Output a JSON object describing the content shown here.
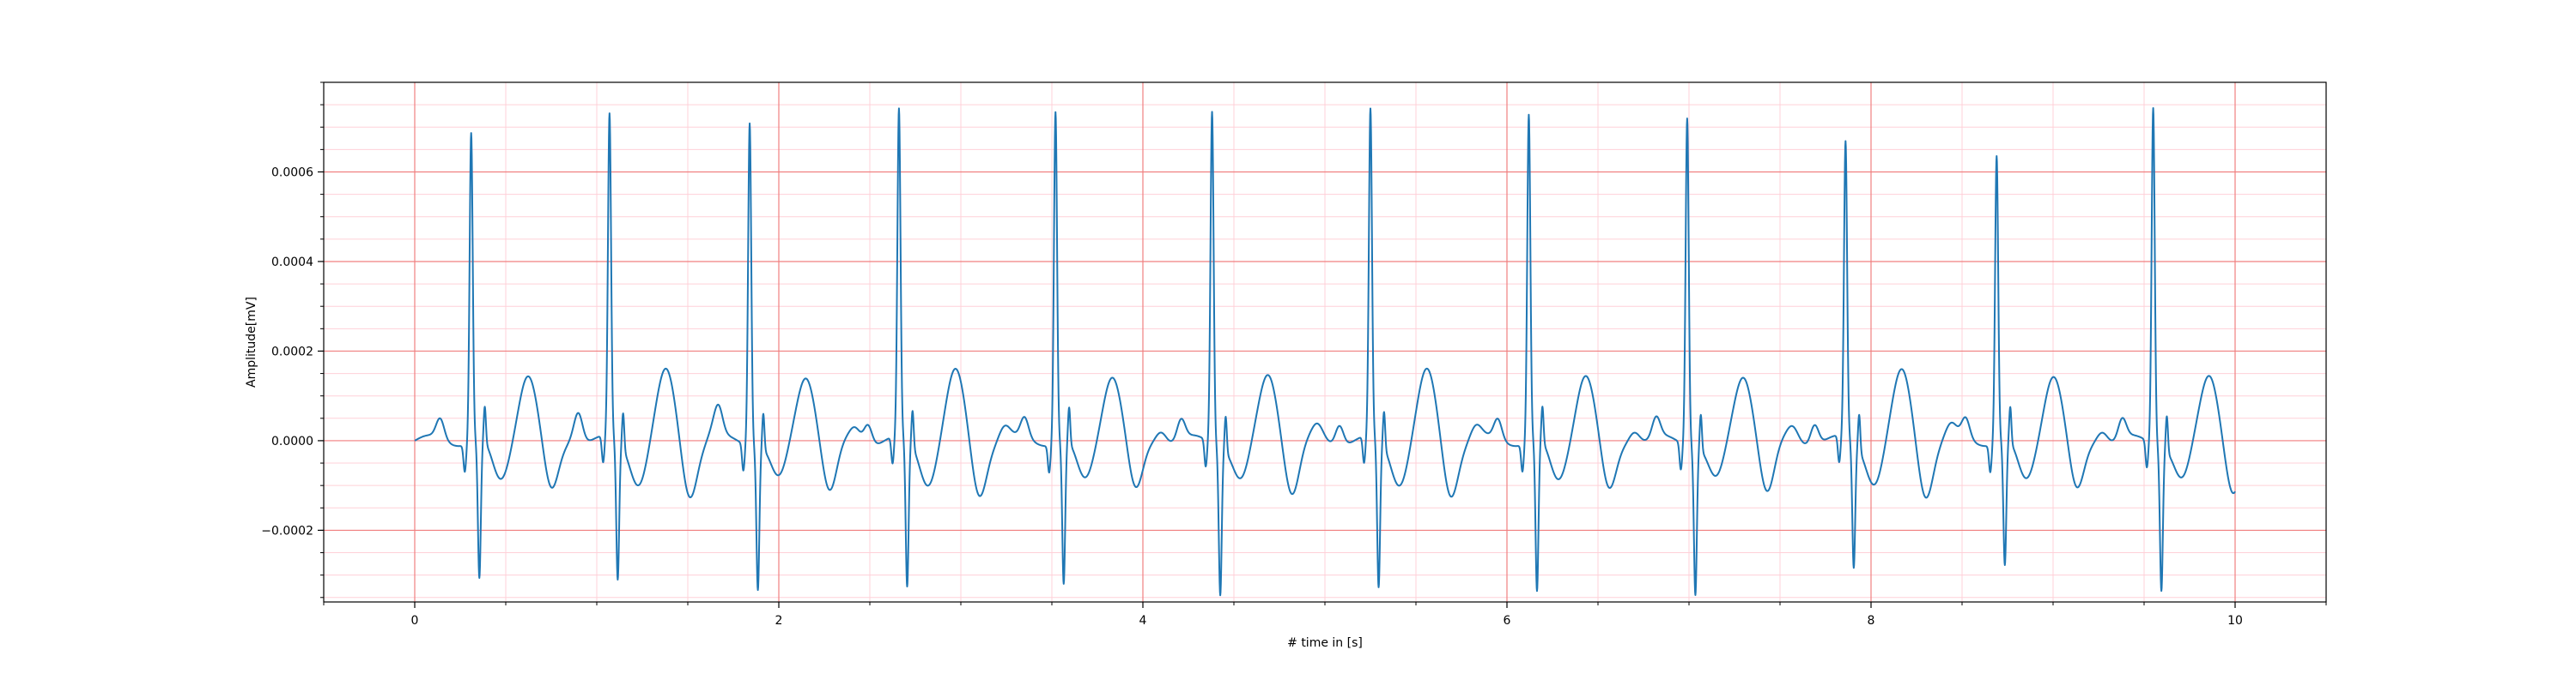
{
  "chart_data": {
    "type": "line",
    "title": "",
    "xlabel": "# time in [s]",
    "ylabel": "Amplitude[mV]",
    "xlim": [
      -0.5,
      10.5
    ],
    "ylim": [
      -0.00036,
      0.0008
    ],
    "x_ticks": [
      0,
      2,
      4,
      6,
      8,
      10
    ],
    "x_tick_labels": [
      "0",
      "2",
      "4",
      "6",
      "8",
      "10"
    ],
    "y_ticks": [
      -0.0002,
      0.0,
      0.0002,
      0.0004,
      0.0006
    ],
    "y_tick_labels": [
      "−0.0002",
      "0.0000",
      "0.0002",
      "0.0004",
      "0.0006"
    ],
    "x_minor_step": 0.5,
    "y_minor_step": 5e-05,
    "grid": {
      "major": true,
      "minor": true,
      "major_color": "#f08080",
      "minor_color": "#ffd0d8"
    },
    "series_color": "#1f77b4",
    "beats": [
      {
        "t": 0.31,
        "r": 0.00069,
        "s": -0.00028
      },
      {
        "t": 1.07,
        "r": 0.00072,
        "s": -0.00028
      },
      {
        "t": 1.84,
        "r": 0.00072,
        "s": -0.00029
      },
      {
        "t": 2.66,
        "r": 0.00073,
        "s": -0.0003
      },
      {
        "t": 3.52,
        "r": 0.00074,
        "s": -0.00029
      },
      {
        "t": 4.38,
        "r": 0.00074,
        "s": -0.0003
      },
      {
        "t": 5.25,
        "r": 0.00073,
        "s": -0.0003
      },
      {
        "t": 6.12,
        "r": 0.00073,
        "s": -0.00031
      },
      {
        "t": 6.99,
        "r": 0.00073,
        "s": -0.0003
      },
      {
        "t": 7.86,
        "r": 0.00066,
        "s": -0.00025
      },
      {
        "t": 8.69,
        "r": 0.00064,
        "s": -0.00025
      },
      {
        "t": 9.55,
        "r": 0.00075,
        "s": -0.00029
      }
    ],
    "t_start": 0.0,
    "t_end": 10.0
  }
}
